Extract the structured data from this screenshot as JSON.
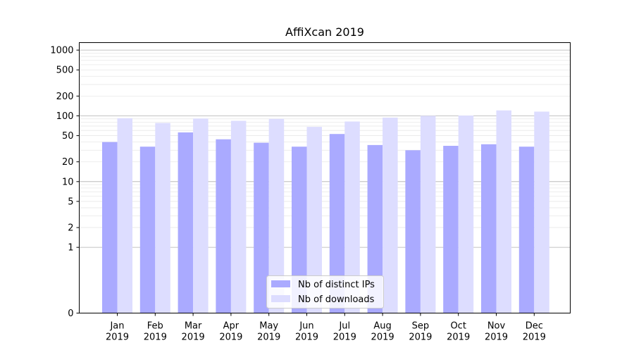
{
  "chart_data": {
    "type": "bar",
    "title": "AffiXcan 2019",
    "xlabel": "",
    "ylabel": "",
    "yscale": "symlog",
    "ylim": [
      0,
      1300
    ],
    "categories": [
      {
        "month": "Jan",
        "year": "2019"
      },
      {
        "month": "Feb",
        "year": "2019"
      },
      {
        "month": "Mar",
        "year": "2019"
      },
      {
        "month": "Apr",
        "year": "2019"
      },
      {
        "month": "May",
        "year": "2019"
      },
      {
        "month": "Jun",
        "year": "2019"
      },
      {
        "month": "Jul",
        "year": "2019"
      },
      {
        "month": "Aug",
        "year": "2019"
      },
      {
        "month": "Sep",
        "year": "2019"
      },
      {
        "month": "Oct",
        "year": "2019"
      },
      {
        "month": "Nov",
        "year": "2019"
      },
      {
        "month": "Dec",
        "year": "2019"
      }
    ],
    "series": [
      {
        "name": "Nb of distinct IPs",
        "color": "#aaaaff",
        "values": [
          40,
          34,
          56,
          44,
          39,
          34,
          53,
          36,
          30,
          35,
          37,
          34
        ]
      },
      {
        "name": "Nb of downloads",
        "color": "#ddddff",
        "values": [
          92,
          78,
          91,
          84,
          90,
          68,
          82,
          94,
          100,
          101,
          121,
          116
        ]
      }
    ],
    "yticks": [
      {
        "value": 0,
        "label": "0"
      },
      {
        "value": 1,
        "label": "1"
      },
      {
        "value": 2,
        "label": "2"
      },
      {
        "value": 5,
        "label": "5"
      },
      {
        "value": 10,
        "label": "10"
      },
      {
        "value": 20,
        "label": "20"
      },
      {
        "value": 50,
        "label": "50"
      },
      {
        "value": 100,
        "label": "100"
      },
      {
        "value": 200,
        "label": "200"
      },
      {
        "value": 500,
        "label": "500"
      },
      {
        "value": 1000,
        "label": "1000"
      }
    ],
    "major_gridlines": [
      1,
      10,
      100,
      1000
    ],
    "minor_gridlines": [
      2,
      3,
      4,
      5,
      6,
      7,
      8,
      9,
      20,
      30,
      40,
      50,
      60,
      70,
      80,
      90,
      200,
      300,
      400,
      500,
      600,
      700,
      800,
      900
    ],
    "legend_position": "lower center",
    "grid": true
  }
}
